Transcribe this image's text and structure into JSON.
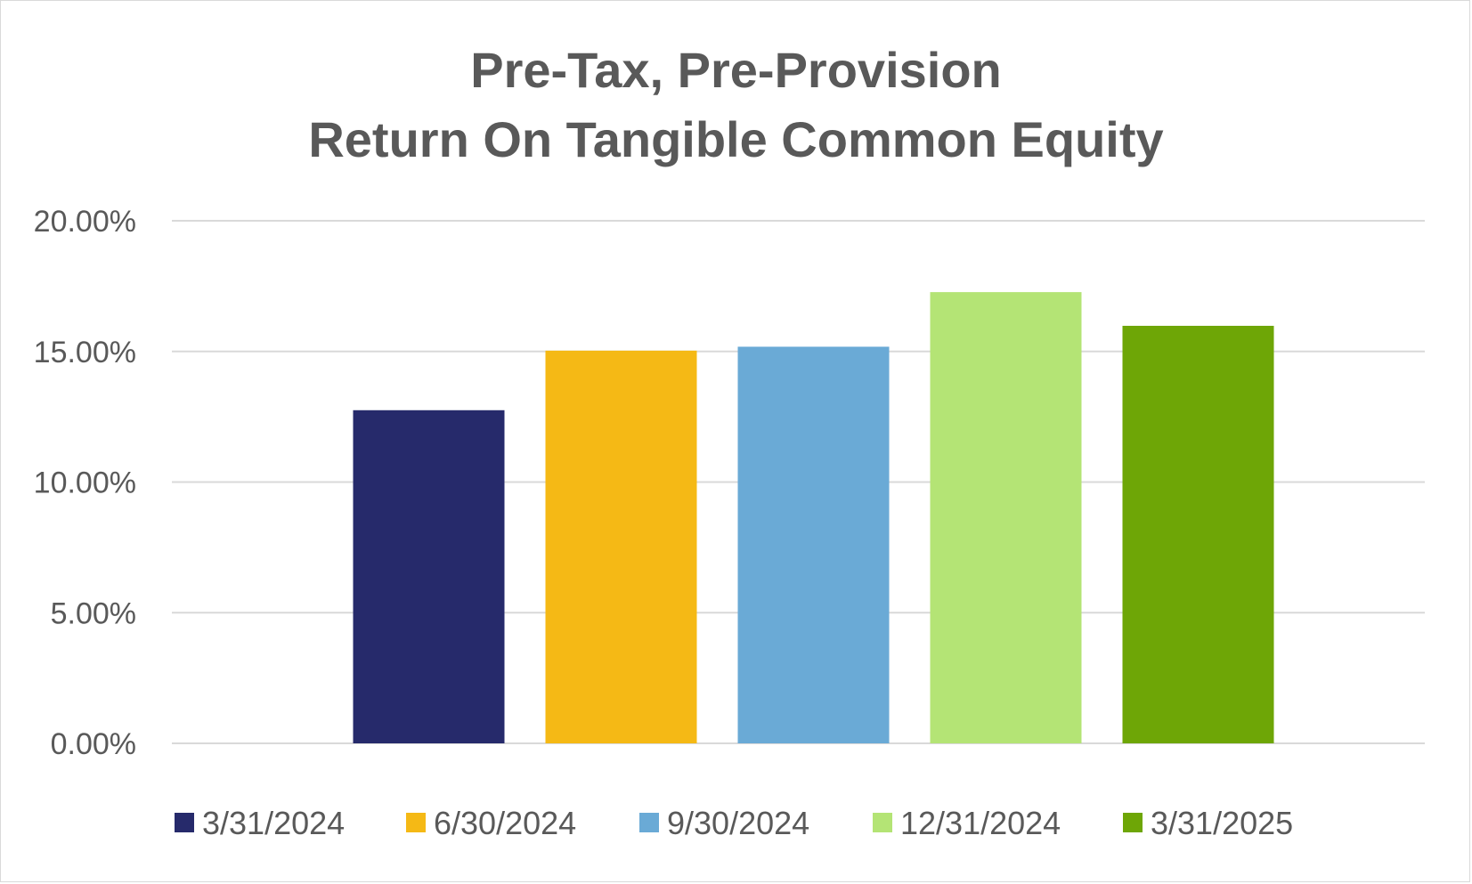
{
  "chart_data": {
    "type": "bar",
    "title_lines": [
      "Pre-Tax, Pre-Provision",
      "Return On Tangible Common Equity"
    ],
    "categories": [
      "3/31/2024",
      "6/30/2024",
      "9/30/2024",
      "12/31/2024",
      "3/31/2025"
    ],
    "values": [
      12.75,
      15.03,
      15.18,
      17.27,
      15.98
    ],
    "colors": [
      "#262a6b",
      "#f5b915",
      "#6aaad6",
      "#b4e475",
      "#6ea606"
    ],
    "ylim": [
      0,
      20
    ],
    "yticks": [
      {
        "value": 0,
        "label": "0.00%"
      },
      {
        "value": 5,
        "label": "5.00%"
      },
      {
        "value": 10,
        "label": "10.00%"
      },
      {
        "value": 15,
        "label": "15.00%"
      },
      {
        "value": 20,
        "label": "20.00%"
      }
    ],
    "grid": true,
    "legend_position": "bottom",
    "xlabel": "",
    "ylabel": ""
  }
}
